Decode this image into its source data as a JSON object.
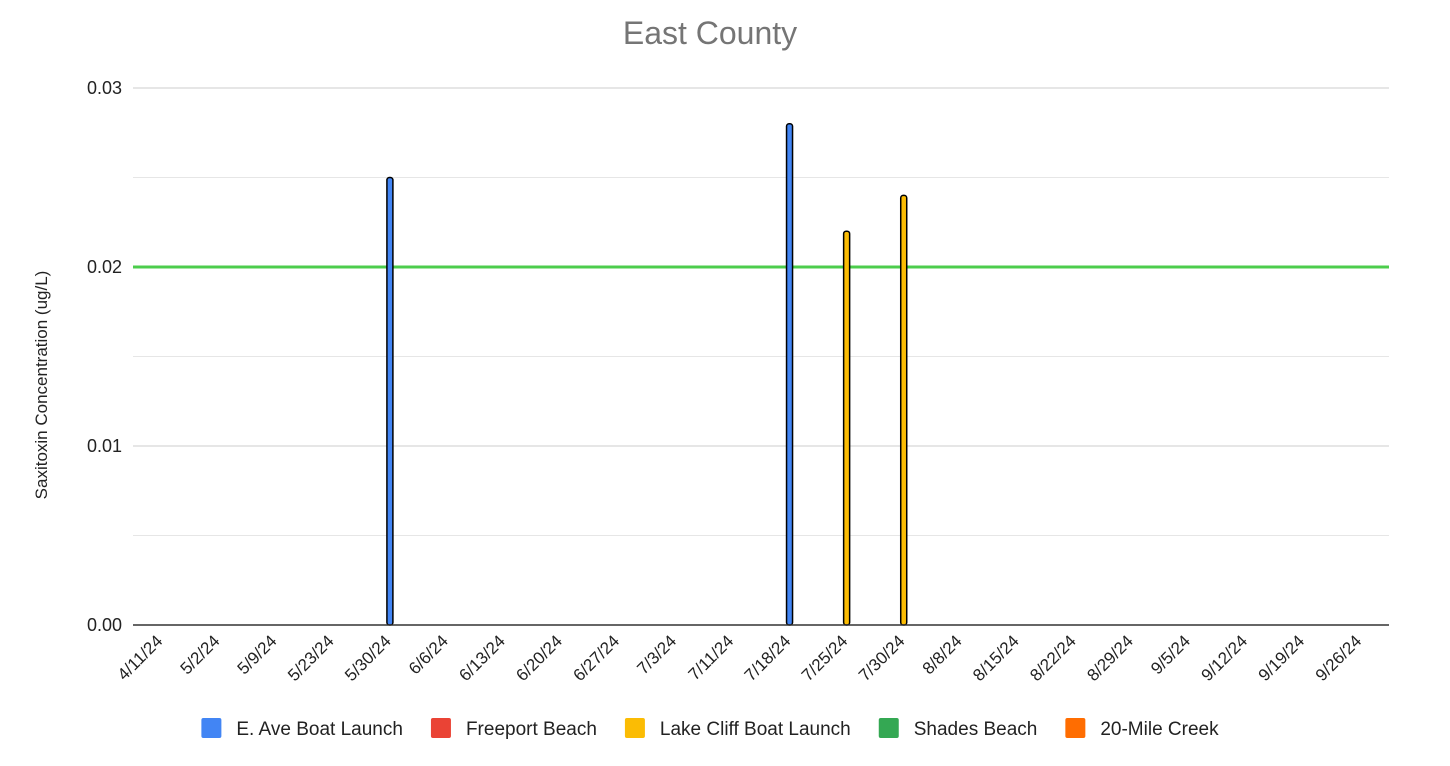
{
  "chart_data": {
    "type": "bar",
    "title": "East County",
    "xlabel": "",
    "ylabel": "Saxitoxin Concentration (ug/L)",
    "ylim": [
      0,
      0.03
    ],
    "yticks": [
      "0.00",
      "0.01",
      "0.02",
      "0.03"
    ],
    "grid": true,
    "legend_position": "bottom",
    "categories": [
      "4/11/24",
      "5/2/24",
      "5/9/24",
      "5/23/24",
      "5/30/24",
      "6/6/24",
      "6/13/24",
      "6/20/24",
      "6/27/24",
      "7/3/24",
      "7/11/24",
      "7/18/24",
      "7/25/24",
      "7/30/24",
      "8/8/24",
      "8/15/24",
      "8/22/24",
      "8/29/24",
      "9/5/24",
      "9/12/24",
      "9/19/24",
      "9/26/24"
    ],
    "series": [
      {
        "name": "E. Ave Boat Launch",
        "color": "#4285f4",
        "values": [
          0,
          0,
          0,
          0,
          0.025,
          0,
          0,
          0,
          0,
          0,
          0,
          0.028,
          0,
          0,
          0,
          0,
          0,
          0,
          0,
          0,
          0,
          0
        ]
      },
      {
        "name": "Freeport Beach",
        "color": "#ea4335",
        "values": [
          0,
          0,
          0,
          0,
          0,
          0,
          0,
          0,
          0,
          0,
          0,
          0,
          0,
          0,
          0,
          0,
          0,
          0,
          0,
          0,
          0,
          0
        ]
      },
      {
        "name": "Lake Cliff Boat Launch",
        "color": "#fbbc04",
        "values": [
          0,
          0,
          0,
          0,
          0,
          0,
          0,
          0,
          0,
          0,
          0,
          0,
          0.022,
          0.024,
          0,
          0,
          0,
          0,
          0,
          0,
          0,
          0
        ]
      },
      {
        "name": "Shades Beach",
        "color": "#34a853",
        "values": [
          0,
          0,
          0,
          0,
          0,
          0,
          0,
          0,
          0,
          0,
          0,
          0,
          0,
          0,
          0,
          0,
          0,
          0,
          0,
          0,
          0,
          0
        ]
      },
      {
        "name": "20-Mile Creek",
        "color": "#ff6d01",
        "values": [
          0,
          0,
          0,
          0,
          0,
          0,
          0,
          0,
          0,
          0,
          0,
          0,
          0,
          0,
          0,
          0,
          0,
          0,
          0,
          0,
          0,
          0
        ]
      }
    ],
    "reference_line": {
      "value": 0.02,
      "color": "#4ccd4c"
    }
  }
}
